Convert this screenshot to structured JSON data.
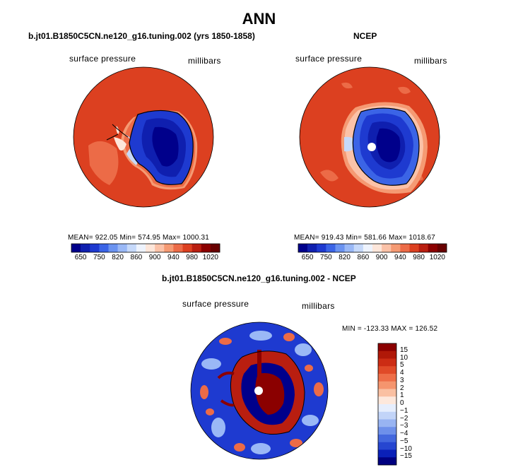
{
  "main_title": "ANN",
  "colors": {
    "ocean_red": "#dc4020",
    "ice_blue": "#1e3ad0",
    "deep_blue": "#000080",
    "dark_red": "#8b0000"
  },
  "chart_data": [
    {
      "type": "heatmap",
      "panel": "model",
      "title": "b.jt01.B1850C5CN.ne120_g16.tuning.002 (yrs 1850-1858)",
      "left_label": "surface pressure",
      "right_label": "millibars",
      "stats_text": "MEAN= 922.05   Min= 574.95   Max= 1000.31",
      "stats": {
        "mean": 922.05,
        "min": 574.95,
        "max": 1000.31
      },
      "levels": [
        650,
        700,
        750,
        780,
        820,
        840,
        860,
        880,
        900,
        920,
        940,
        960,
        980,
        1000,
        1020
      ],
      "tick_labels": [
        "650",
        "750",
        "820",
        "860",
        "900",
        "940",
        "980",
        "1020"
      ],
      "colors": [
        "#00008b",
        "#0f1faf",
        "#1e3ad0",
        "#3b64e6",
        "#6b93f0",
        "#9ab8f6",
        "#c6d9fa",
        "#eef3fd",
        "#fde6da",
        "#fbc2a8",
        "#f59a73",
        "#ec6b47",
        "#dc4020",
        "#b91e10",
        "#8b0000",
        "#680000"
      ]
    },
    {
      "type": "heatmap",
      "panel": "observations",
      "title": "NCEP",
      "left_label": "surface pressure",
      "right_label": "millibars",
      "stats_text": "MEAN= 919.43   Min= 581.66   Max= 1018.67",
      "stats": {
        "mean": 919.43,
        "min": 581.66,
        "max": 1018.67
      },
      "levels": [
        650,
        700,
        750,
        780,
        820,
        840,
        860,
        880,
        900,
        920,
        940,
        960,
        980,
        1000,
        1020
      ],
      "tick_labels": [
        "650",
        "750",
        "820",
        "860",
        "900",
        "940",
        "980",
        "1020"
      ],
      "colors": [
        "#00008b",
        "#0f1faf",
        "#1e3ad0",
        "#3b64e6",
        "#6b93f0",
        "#9ab8f6",
        "#c6d9fa",
        "#eef3fd",
        "#fde6da",
        "#fbc2a8",
        "#f59a73",
        "#ec6b47",
        "#dc4020",
        "#b91e10",
        "#8b0000",
        "#680000"
      ]
    },
    {
      "type": "heatmap",
      "panel": "difference",
      "title": "b.jt01.B1850C5CN.ne120_g16.tuning.002 - NCEP",
      "left_label": "surface pressure",
      "right_label": "millibars",
      "stats_text": "MIN = -123.33  MAX = 126.52",
      "stats": {
        "min": -123.33,
        "max": 126.52
      },
      "levels": [
        -15,
        -10,
        -5,
        -4,
        -3,
        -2,
        -1,
        0,
        1,
        2,
        3,
        4,
        5,
        10,
        15
      ],
      "tick_labels": [
        "15",
        "10",
        "5",
        "4",
        "3",
        "2",
        "1",
        "0",
        "−1",
        "−2",
        "−3",
        "−4",
        "−5",
        "−10",
        "−15"
      ],
      "colors": [
        "#8b0000",
        "#b01808",
        "#cc2c14",
        "#e04a28",
        "#ee6e48",
        "#f5956e",
        "#fac0a2",
        "#fde8dc",
        "#e6eefd",
        "#c2d4f8",
        "#98b4f2",
        "#6e90ea",
        "#4468de",
        "#2646d0",
        "#0a20b8",
        "#000080"
      ]
    }
  ]
}
